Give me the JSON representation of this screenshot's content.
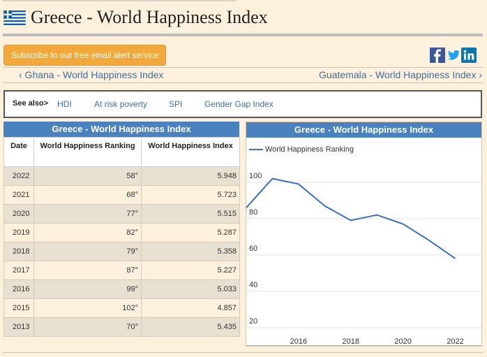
{
  "header": {
    "title": "Greece - World Happiness Index"
  },
  "subscribe": {
    "label": "Subscribe to our free email alert service"
  },
  "social": {
    "facebook_icon": "facebook-icon",
    "twitter_icon": "twitter-icon",
    "linkedin_icon": "linkedin-icon"
  },
  "nav": {
    "prev_label": "‹ Ghana - World Happiness Index",
    "next_label": "Guatemala - World Happiness Index ›"
  },
  "see_also": {
    "label": "See also>",
    "links": [
      "HDI",
      "At risk poverty",
      "SPI",
      "Gender Gap Index"
    ]
  },
  "table": {
    "caption": "Greece - World Happiness Index",
    "columns": [
      "Date",
      "World Happiness Ranking",
      "World Happiness Index"
    ],
    "rows": [
      [
        "2022",
        "58°",
        "5.948"
      ],
      [
        "2021",
        "68°",
        "5.723"
      ],
      [
        "2020",
        "77°",
        "5.515"
      ],
      [
        "2019",
        "82°",
        "5.287"
      ],
      [
        "2018",
        "79°",
        "5.358"
      ],
      [
        "2017",
        "87°",
        "5.227"
      ],
      [
        "2016",
        "99°",
        "5.033"
      ],
      [
        "2015",
        "102°",
        "4.857"
      ],
      [
        "2013",
        "70°",
        "5.435"
      ]
    ]
  },
  "colors": {
    "accent": "#4a82bf",
    "button": "#f2a93b",
    "link": "#3d6fa6"
  },
  "chart_data": {
    "type": "line",
    "title": "Greece - World Happiness Index",
    "series": [
      {
        "name": "World Happiness Ranking",
        "x": [
          2013,
          2015,
          2016,
          2017,
          2018,
          2019,
          2020,
          2021,
          2022
        ],
        "values": [
          70,
          102,
          99,
          87,
          79,
          82,
          77,
          68,
          58
        ]
      }
    ],
    "color": "#3a6fc4",
    "xticks": [
      "2016",
      "2018",
      "2020",
      "2022"
    ],
    "yticks": [
      "20",
      "40",
      "60",
      "80",
      "100"
    ],
    "xlim": [
      2014,
      2023
    ],
    "ylim": [
      10,
      113
    ],
    "grid": true,
    "legend": "top-left"
  }
}
